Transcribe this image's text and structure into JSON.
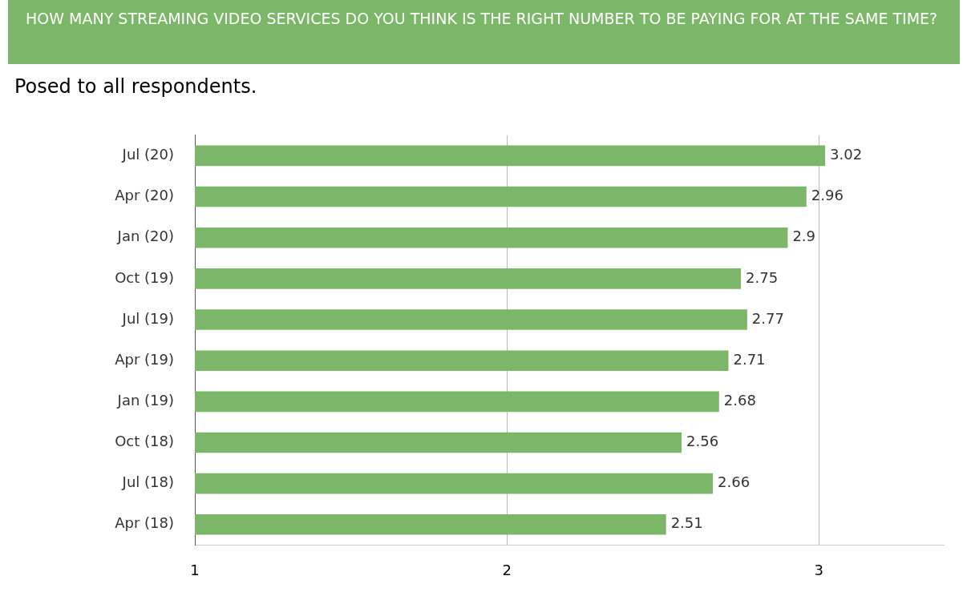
{
  "chart_data": {
    "type": "bar",
    "orientation": "horizontal",
    "title": "HOW MANY STREAMING VIDEO SERVICES DO YOU THINK IS THE RIGHT NUMBER TO BE PAYING FOR AT THE SAME TIME?",
    "subtitle": "Posed to all respondents.",
    "categories": [
      "Jul (20)",
      "Apr (20)",
      "Jan (20)",
      "Oct (19)",
      "Jul (19)",
      "Apr (19)",
      "Jan (19)",
      "Oct (18)",
      "Jul (18)",
      "Apr (18)"
    ],
    "values": [
      3.02,
      2.96,
      2.9,
      2.75,
      2.77,
      2.71,
      2.68,
      2.56,
      2.66,
      2.51
    ],
    "color": "#7cb668",
    "xlim": [
      1,
      3.4
    ],
    "xticks": [
      1,
      2,
      3
    ],
    "grid": "x",
    "data_labels": true,
    "legend": false
  }
}
